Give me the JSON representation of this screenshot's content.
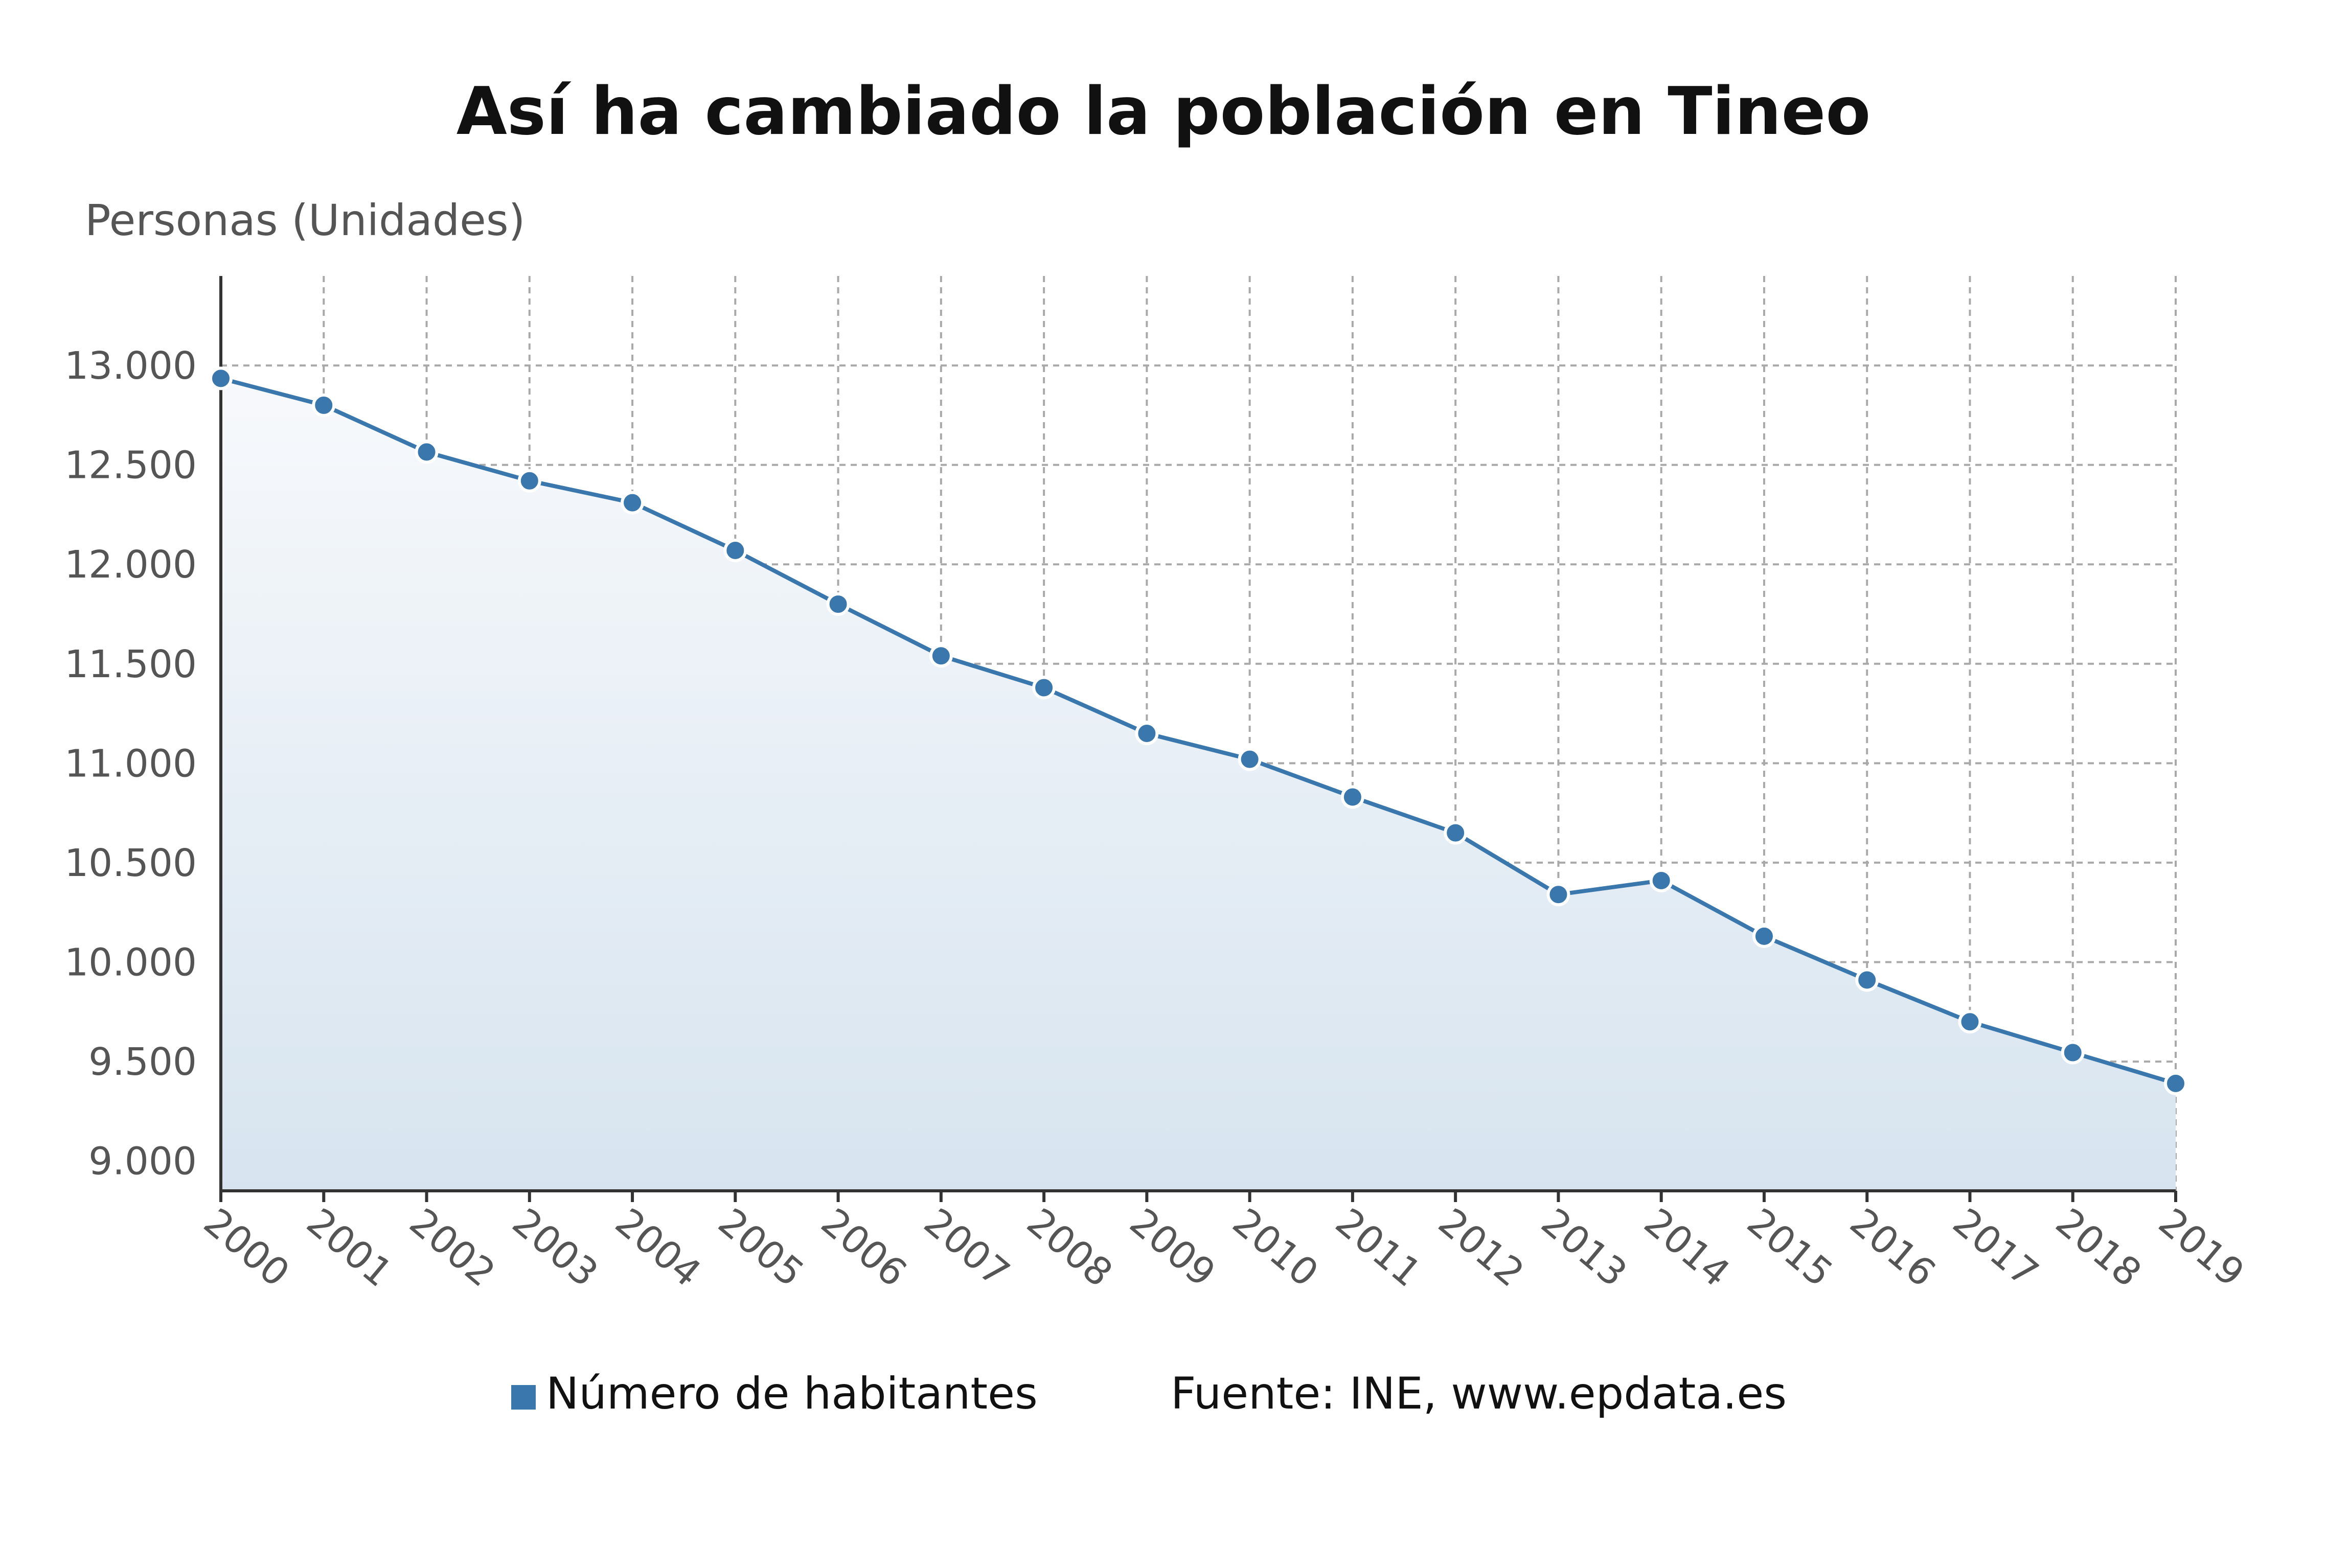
{
  "chart_data": {
    "type": "area",
    "title": "Así ha cambiado la población en Tineo",
    "ylabel": "Personas (Unidades)",
    "xlabel": "",
    "x": [
      "2000",
      "2001",
      "2002",
      "2003",
      "2004",
      "2005",
      "2006",
      "2007",
      "2008",
      "2009",
      "2010",
      "2011",
      "2012",
      "2013",
      "2014",
      "2015",
      "2016",
      "2017",
      "2018",
      "2019"
    ],
    "series": [
      {
        "name": "Número de habitantes",
        "color": "#3a77ad",
        "values": [
          12935,
          12800,
          12565,
          12420,
          12310,
          12070,
          11800,
          11540,
          11380,
          11150,
          11020,
          10830,
          10650,
          10340,
          10410,
          10130,
          9910,
          9700,
          9545,
          9390
        ]
      }
    ],
    "ylim": [
      8850,
      13450
    ],
    "yticks": [
      9000,
      9500,
      10000,
      10500,
      11000,
      11500,
      12000,
      12500,
      13000
    ],
    "ytick_labels": [
      "9.000",
      "9.500",
      "10.000",
      "10.500",
      "11.000",
      "11.500",
      "12.000",
      "12.500",
      "13.000"
    ],
    "grid": true,
    "legend_position": "bottom"
  },
  "source": "Fuente: INE, www.epdata.es"
}
